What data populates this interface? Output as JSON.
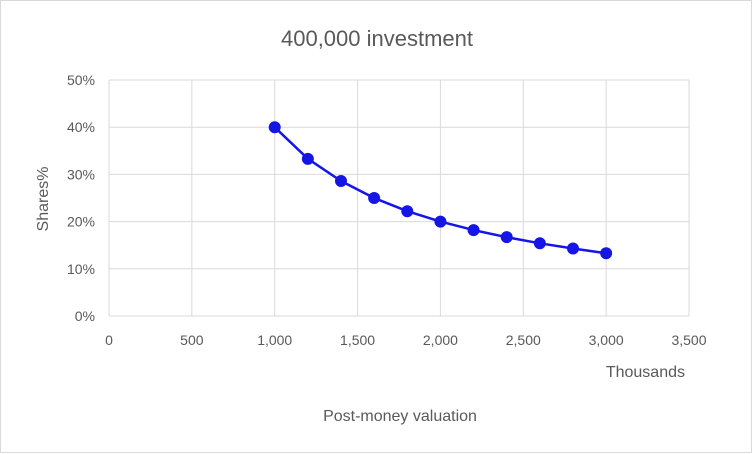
{
  "chart_data": {
    "type": "scatter",
    "title": "400,000 investment",
    "xlabel": "Post-money valuation",
    "ylabel": "Shares%",
    "x_display_units": "Thousands",
    "xlim": [
      0,
      3500
    ],
    "ylim": [
      0,
      50
    ],
    "x_ticks": [
      0,
      500,
      1000,
      1500,
      2000,
      2500,
      3000,
      3500
    ],
    "x_tick_labels": [
      "0",
      "500",
      "1,000",
      "1,500",
      "2,000",
      "2,500",
      "3,000",
      "3,500"
    ],
    "y_ticks": [
      0,
      10,
      20,
      30,
      40,
      50
    ],
    "y_tick_labels": [
      "0%",
      "10%",
      "20%",
      "30%",
      "40%",
      "50%"
    ],
    "grid": true,
    "legend": "none",
    "series": [
      {
        "color": "#1515e6",
        "lines": true,
        "markers": true,
        "x": [
          1000,
          1200,
          1400,
          1600,
          1800,
          2000,
          2200,
          2400,
          2600,
          2800,
          3000
        ],
        "y": [
          40.0,
          33.3,
          28.6,
          25.0,
          22.2,
          20.0,
          18.2,
          16.7,
          15.4,
          14.3,
          13.3
        ]
      }
    ]
  }
}
